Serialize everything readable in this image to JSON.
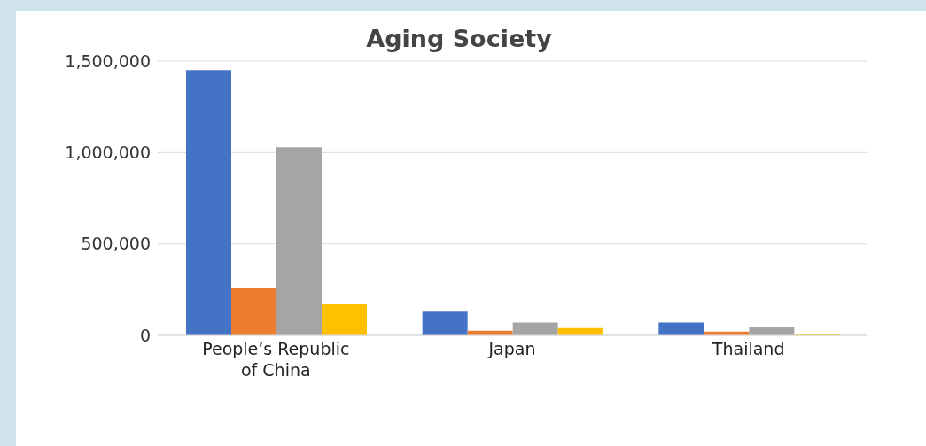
{
  "chart_data": {
    "type": "bar",
    "title": "Aging Society",
    "categories": [
      "People’s Republic of China",
      "Japan",
      "Thailand"
    ],
    "series": [
      {
        "color": "#4472c4",
        "values": [
          1450000,
          130000,
          70000
        ]
      },
      {
        "color": "#ed7d31",
        "values": [
          260000,
          25000,
          20000
        ]
      },
      {
        "color": "#a5a5a5",
        "values": [
          1030000,
          70000,
          45000
        ]
      },
      {
        "color": "#ffc000",
        "values": [
          170000,
          40000,
          8000
        ]
      }
    ],
    "ylim": [
      0,
      1500000
    ],
    "yticks": [
      0,
      {
        "value": 500000,
        "label": "500,000"
      },
      {
        "value": 1000000,
        "label": "1,000,000"
      },
      {
        "value": 1500000,
        "label": "1,500,000"
      }
    ],
    "grid": "y",
    "legend": false
  }
}
